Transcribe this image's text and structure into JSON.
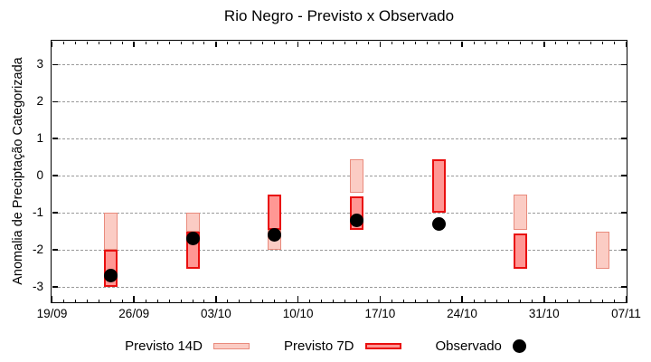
{
  "title": "Rio Negro - Previsto x Observado",
  "chart_data": {
    "type": "bar",
    "style": "floating-range-bars-with-observed-points",
    "title": "Rio Negro - Previsto x Observado",
    "xlabel": "",
    "ylabel": "Anomalia de Preciptação Categorizada",
    "ylim": [
      -3.4,
      3.63
    ],
    "yticks": [
      3,
      2,
      1,
      0,
      -1,
      -2,
      -3
    ],
    "grid": {
      "horizontal_dashed": true,
      "vertical": false,
      "color": "#999999"
    },
    "x_axis": {
      "days_total": 49,
      "minor_tick_every_days": 1,
      "major_ticks": [
        {
          "day": 0,
          "label": "19/09"
        },
        {
          "day": 7,
          "label": "26/09"
        },
        {
          "day": 14,
          "label": "03/10"
        },
        {
          "day": 21,
          "label": "10/10"
        },
        {
          "day": 28,
          "label": "17/10"
        },
        {
          "day": 35,
          "label": "24/10"
        },
        {
          "day": 42,
          "label": "31/10"
        },
        {
          "day": 49,
          "label": "07/11"
        }
      ]
    },
    "series": [
      {
        "name": "Previsto 14D",
        "type": "range-bar",
        "ranges": [
          {
            "date": "24/09",
            "day": 5,
            "hi": -1.0,
            "lo": -2.0
          },
          {
            "date": "01/10",
            "day": 12,
            "hi": -1.0,
            "lo": -1.5
          },
          {
            "date": "08/10",
            "day": 19,
            "hi": -1.45,
            "lo": -2.0
          },
          {
            "date": "15/10",
            "day": 26,
            "hi": 0.45,
            "lo": -0.45
          },
          {
            "date": "29/10",
            "day": 40,
            "hi": -0.5,
            "lo": -1.45
          },
          {
            "date": "05/11",
            "day": 47,
            "hi": -1.5,
            "lo": -2.5
          }
        ]
      },
      {
        "name": "Previsto 7D",
        "type": "range-bar",
        "ranges": [
          {
            "date": "24/09",
            "day": 5,
            "hi": -2.0,
            "lo": -3.0
          },
          {
            "date": "01/10",
            "day": 12,
            "hi": -1.5,
            "lo": -2.5
          },
          {
            "date": "08/10",
            "day": 19,
            "hi": -0.5,
            "lo": -1.45
          },
          {
            "date": "15/10",
            "day": 26,
            "hi": -0.55,
            "lo": -1.45
          },
          {
            "date": "22/10",
            "day": 33,
            "hi": 0.45,
            "lo": -1.0
          },
          {
            "date": "29/10",
            "day": 40,
            "hi": -1.55,
            "lo": -2.5
          }
        ]
      },
      {
        "name": "Observado",
        "type": "scatter",
        "points": [
          {
            "date": "24/09",
            "day": 5,
            "y": -2.7
          },
          {
            "date": "01/10",
            "day": 12,
            "y": -1.7
          },
          {
            "date": "08/10",
            "day": 19,
            "y": -1.6
          },
          {
            "date": "15/10",
            "day": 26,
            "y": -1.2
          },
          {
            "date": "22/10",
            "day": 33,
            "y": -1.3
          }
        ]
      }
    ],
    "legend_position": "bottom-center"
  },
  "legend": {
    "p14_label": "Previsto 14D",
    "p7_label": "Previsto 7D",
    "obs_label": "Observado"
  },
  "colors": {
    "p14_fill": "#fbccc4",
    "p14_border": "#e98b7d",
    "p7_fill": "#ff9794",
    "p7_border": "#e90f0f",
    "observado": "#000000",
    "grid": "#999999",
    "axis": "#000000",
    "background": "#ffffff"
  }
}
